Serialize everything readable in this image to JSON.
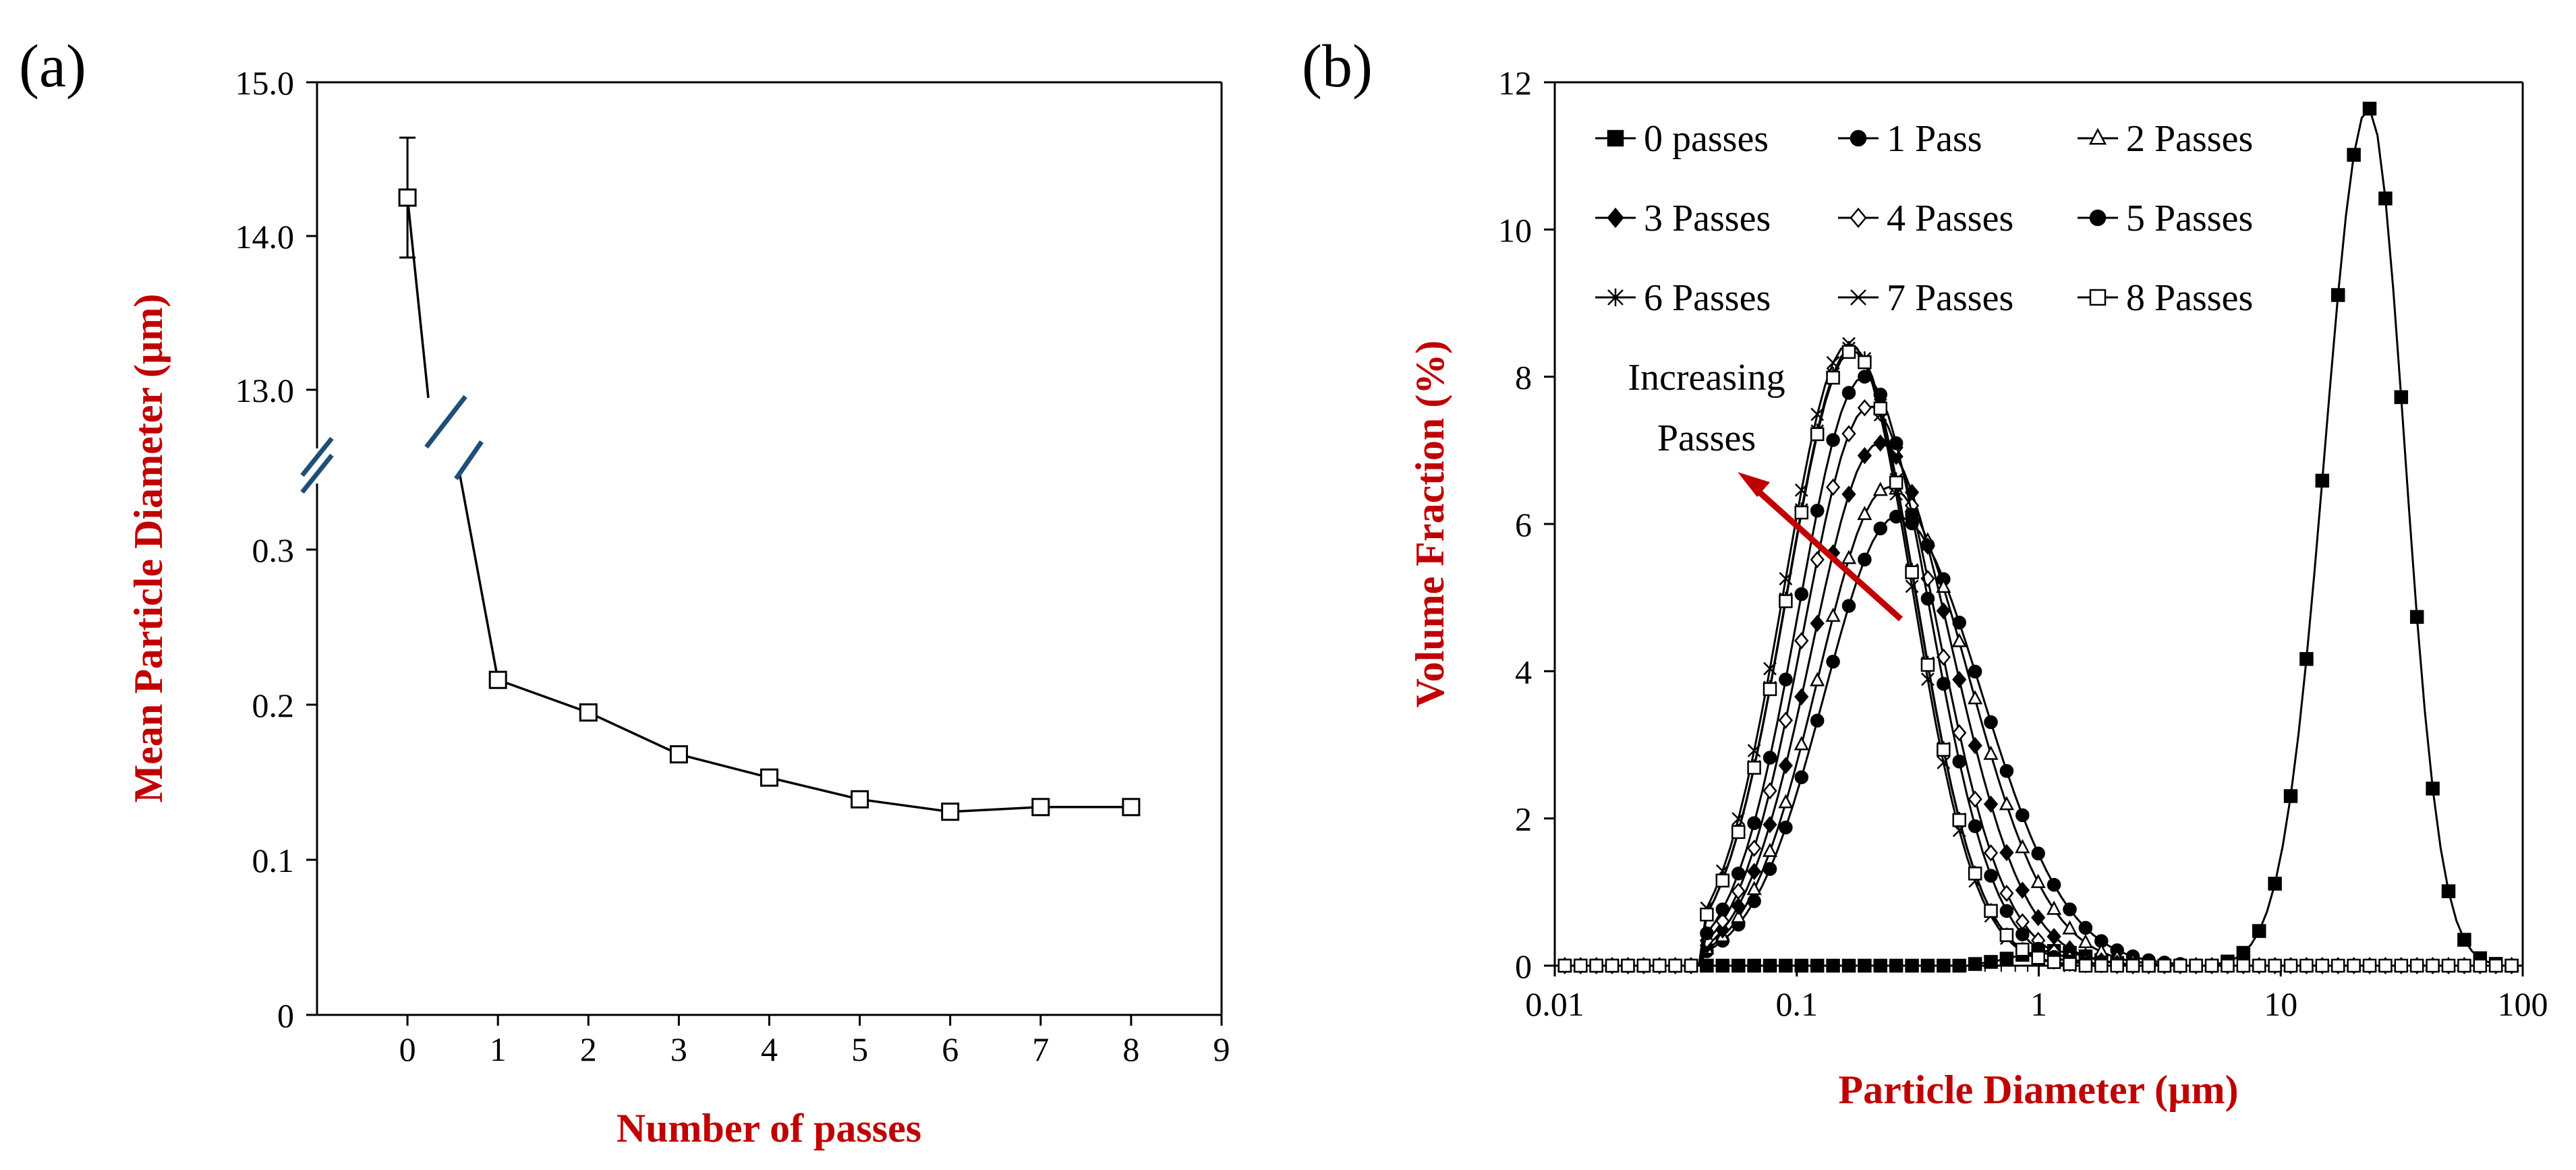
{
  "colors": {
    "axis_title": "#C00000",
    "arrow": "#C00000",
    "break_mark": "#1F4E79",
    "series": "#000000"
  },
  "panel_a": {
    "label": "(a)"
  },
  "panel_b": {
    "label": "(b)"
  },
  "chart_data": [
    {
      "type": "line",
      "panel": "(a)",
      "title": "",
      "xlabel": "Number of passes",
      "ylabel": "Mean Particle Diameter (µm)",
      "x_ticks": [
        "0",
        "1",
        "2",
        "3",
        "4",
        "5",
        "6",
        "7",
        "8",
        "9"
      ],
      "xlim": [
        -1,
        9
      ],
      "y_axis_broken": true,
      "y_ticks_lower": [
        "0",
        "0.1",
        "0.2",
        "0.3"
      ],
      "y_ticks_upper": [
        "13.0",
        "14.0",
        "15.0"
      ],
      "ylim_lower": [
        0,
        0.35
      ],
      "ylim_upper": [
        12.6,
        15.0
      ],
      "marker": "open-square",
      "series": [
        {
          "name": "Mean particle diameter",
          "x": [
            0,
            1,
            2,
            3,
            4,
            5,
            6,
            7,
            8
          ],
          "y": [
            14.25,
            0.216,
            0.195,
            0.168,
            0.153,
            0.139,
            0.131,
            0.134,
            0.134
          ],
          "error": [
            0.39,
            0.004,
            0.003,
            0.002,
            0.002,
            0.002,
            0.002,
            0.002,
            0.002
          ]
        }
      ]
    },
    {
      "type": "line",
      "panel": "(b)",
      "title": "",
      "xlabel": "Particle Diameter (µm)",
      "ylabel": "Volume Fraction (%)",
      "x_scale": "log",
      "xlim": [
        0.01,
        100
      ],
      "ylim": [
        0,
        12
      ],
      "x_ticks": [
        "0.01",
        "0.1",
        "1",
        "10",
        "100"
      ],
      "y_ticks": [
        "0",
        "2",
        "4",
        "6",
        "8",
        "10",
        "12"
      ],
      "legend_position": "top-left",
      "annotation": {
        "text": [
          "Increasing",
          "Passes"
        ]
      },
      "series": [
        {
          "name": "0 passes",
          "marker": "filled-square",
          "mode": "0",
          "peak_d": 23.0,
          "peak": 11.65,
          "sigma_left": 0.178,
          "sigma_right": 0.15
        },
        {
          "name": "1 Pass",
          "marker": "filled-circle",
          "mode": "1",
          "peak_d": 0.26,
          "peak": 6.1,
          "sigma_left": 0.3,
          "sigma_right": 0.35
        },
        {
          "name": "2 Passes",
          "marker": "open-triangle",
          "mode": "1",
          "peak_d": 0.24,
          "peak": 6.5,
          "sigma_left": 0.29,
          "sigma_right": 0.33
        },
        {
          "name": "3 Passes",
          "marker": "filled-diamond",
          "mode": "1",
          "peak_d": 0.22,
          "peak": 7.1,
          "sigma_left": 0.28,
          "sigma_right": 0.3
        },
        {
          "name": "4 Passes",
          "marker": "open-diamond",
          "mode": "1",
          "peak_d": 0.2,
          "peak": 7.6,
          "sigma_left": 0.27,
          "sigma_right": 0.28
        },
        {
          "name": "5 Passes",
          "marker": "filled-circle",
          "mode": "1",
          "peak_d": 0.19,
          "peak": 8.0,
          "sigma_left": 0.27,
          "sigma_right": 0.27
        },
        {
          "name": "6 Passes",
          "marker": "star",
          "mode": "1",
          "peak_d": 0.17,
          "peak": 8.4,
          "sigma_left": 0.27,
          "sigma_right": 0.26
        },
        {
          "name": "7 Passes",
          "marker": "cross",
          "mode": "1",
          "peak_d": 0.165,
          "peak": 8.45,
          "sigma_left": 0.27,
          "sigma_right": 0.26
        },
        {
          "name": "8 Passes",
          "marker": "open-square",
          "mode": "1",
          "peak_d": 0.17,
          "peak": 8.35,
          "sigma_left": 0.27,
          "sigma_right": 0.26
        }
      ]
    }
  ]
}
